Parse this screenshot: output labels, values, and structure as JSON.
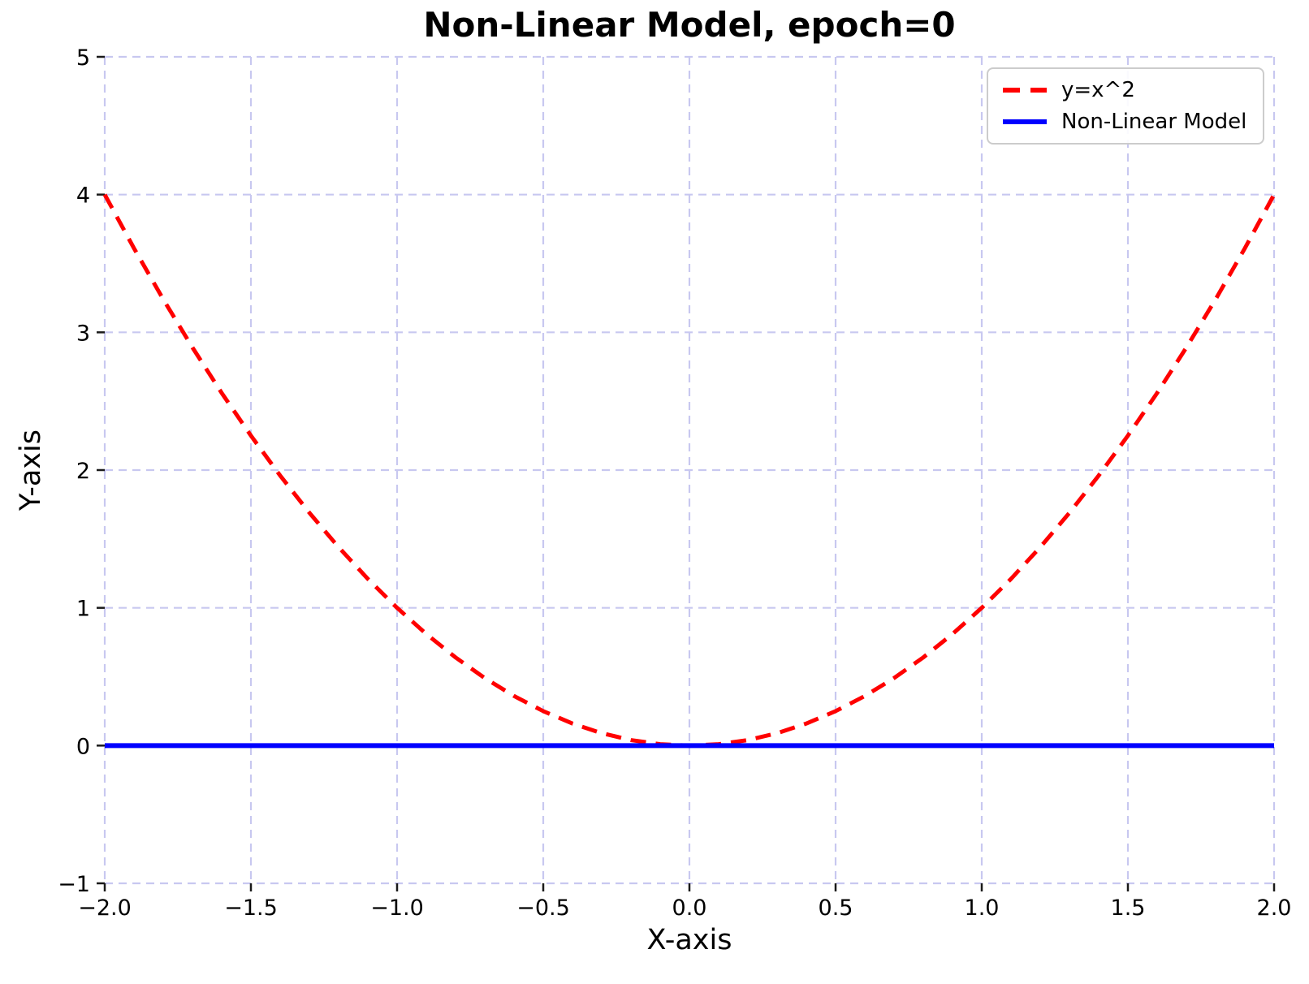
{
  "figure": {
    "background_color": "#ffffff",
    "text_color": "#000000"
  },
  "chart_data": {
    "type": "line",
    "title": "Non-Linear Model, epoch=0",
    "xlabel": "X-axis",
    "ylabel": "Y-axis",
    "xlim": [
      -2.0,
      2.0
    ],
    "ylim": [
      -1,
      5
    ],
    "grid": {
      "visible": true,
      "linestyle": "dashed",
      "color": "#c8c8f0"
    },
    "xticks": {
      "values": [
        -2.0,
        -1.5,
        -1.0,
        -0.5,
        0.0,
        0.5,
        1.0,
        1.5,
        2.0
      ],
      "labels": [
        "−2.0",
        "−1.5",
        "−1.0",
        "−0.5",
        "0.0",
        "0.5",
        "1.0",
        "1.5",
        "2.0"
      ]
    },
    "yticks": {
      "values": [
        -1,
        0,
        1,
        2,
        3,
        4,
        5
      ],
      "labels": [
        "−1",
        "0",
        "1",
        "2",
        "3",
        "4",
        "5"
      ]
    },
    "legend": {
      "position": "upper right",
      "entries": [
        {
          "label": "y=x^2",
          "color": "#ff0000",
          "linestyle": "dashed"
        },
        {
          "label": "Non-Linear Model",
          "color": "#0000ff",
          "linestyle": "solid"
        }
      ]
    },
    "series": [
      {
        "name": "y=x^2",
        "color": "#ff0000",
        "linestyle": "dashed",
        "linewidth": 5,
        "x": [
          -2.0,
          -1.9,
          -1.8,
          -1.7,
          -1.6,
          -1.5,
          -1.4,
          -1.3,
          -1.2,
          -1.1,
          -1.0,
          -0.9,
          -0.8,
          -0.7,
          -0.6,
          -0.5,
          -0.4,
          -0.3,
          -0.2,
          -0.1,
          0.0,
          0.1,
          0.2,
          0.3,
          0.4,
          0.5,
          0.6,
          0.7,
          0.8,
          0.9,
          1.0,
          1.1,
          1.2,
          1.3,
          1.4,
          1.5,
          1.6,
          1.7,
          1.8,
          1.9,
          2.0
        ],
        "y": [
          4.0,
          3.61,
          3.24,
          2.89,
          2.56,
          2.25,
          1.96,
          1.69,
          1.44,
          1.21,
          1.0,
          0.81,
          0.64,
          0.49,
          0.36,
          0.25,
          0.16,
          0.09,
          0.04,
          0.01,
          0.0,
          0.01,
          0.04,
          0.09,
          0.16,
          0.25,
          0.36,
          0.49,
          0.64,
          0.81,
          1.0,
          1.21,
          1.44,
          1.69,
          1.96,
          2.25,
          2.56,
          2.89,
          3.24,
          3.61,
          4.0
        ]
      },
      {
        "name": "Non-Linear Model",
        "color": "#0000ff",
        "linestyle": "solid",
        "linewidth": 6,
        "x": [
          -2.0,
          2.0
        ],
        "y": [
          0.0,
          0.0
        ]
      }
    ]
  }
}
